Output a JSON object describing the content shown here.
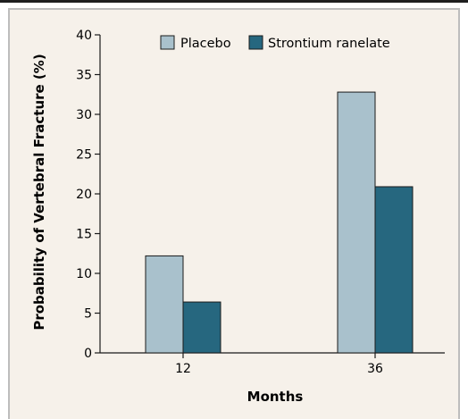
{
  "chart_data": {
    "type": "bar",
    "title": "",
    "xlabel": "Months",
    "ylabel": "Probability of Vertebral Fracture (%)",
    "categories": [
      "12",
      "36"
    ],
    "series": [
      {
        "name": "Placebo",
        "values": [
          12.2,
          32.8
        ],
        "color": "#a9c1cc"
      },
      {
        "name": "Strontium ranelate",
        "values": [
          6.4,
          20.9
        ],
        "color": "#26677f"
      }
    ],
    "ylim": [
      0,
      40
    ],
    "yticks": [
      0,
      5,
      10,
      15,
      20,
      25,
      30,
      35,
      40
    ],
    "yticks_labels": [
      "0",
      "5",
      "10",
      "15",
      "20",
      "25",
      "30",
      "35",
      "40"
    ],
    "grid": false,
    "legend": "top-right"
  },
  "colors": {
    "panel_background": "#f6f1ea",
    "panel_border": "#bdbdbd",
    "axis": "#1a1a1a",
    "bar_outline": "#1a1a1a"
  }
}
